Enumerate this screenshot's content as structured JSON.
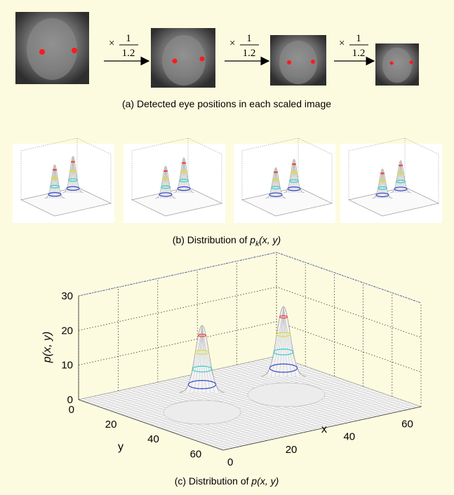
{
  "panel_a": {
    "scales": [
      {
        "times": "×",
        "numerator": "1",
        "denominator": "1.2"
      },
      {
        "times": "×",
        "numerator": "1",
        "denominator": "1.2"
      },
      {
        "times": "×",
        "numerator": "1",
        "denominator": "1.2"
      }
    ],
    "caption": "(a) Detected eye positions in each scaled image"
  },
  "panel_b": {
    "caption": {
      "prefix": "(b) Distribution of ",
      "func": "p",
      "sub": "k",
      "args": "(x, y)"
    }
  },
  "panel_c": {
    "z_label": "p(x, y)",
    "x_label": "x",
    "y_label": "y",
    "z_ticks": [
      0,
      10,
      20,
      30
    ],
    "y_ticks": [
      0,
      20,
      40,
      60
    ],
    "x_ticks": [
      0,
      20,
      40,
      60
    ],
    "caption": {
      "prefix": "(c) Distribution of ",
      "func": "p(x, y)"
    }
  }
}
